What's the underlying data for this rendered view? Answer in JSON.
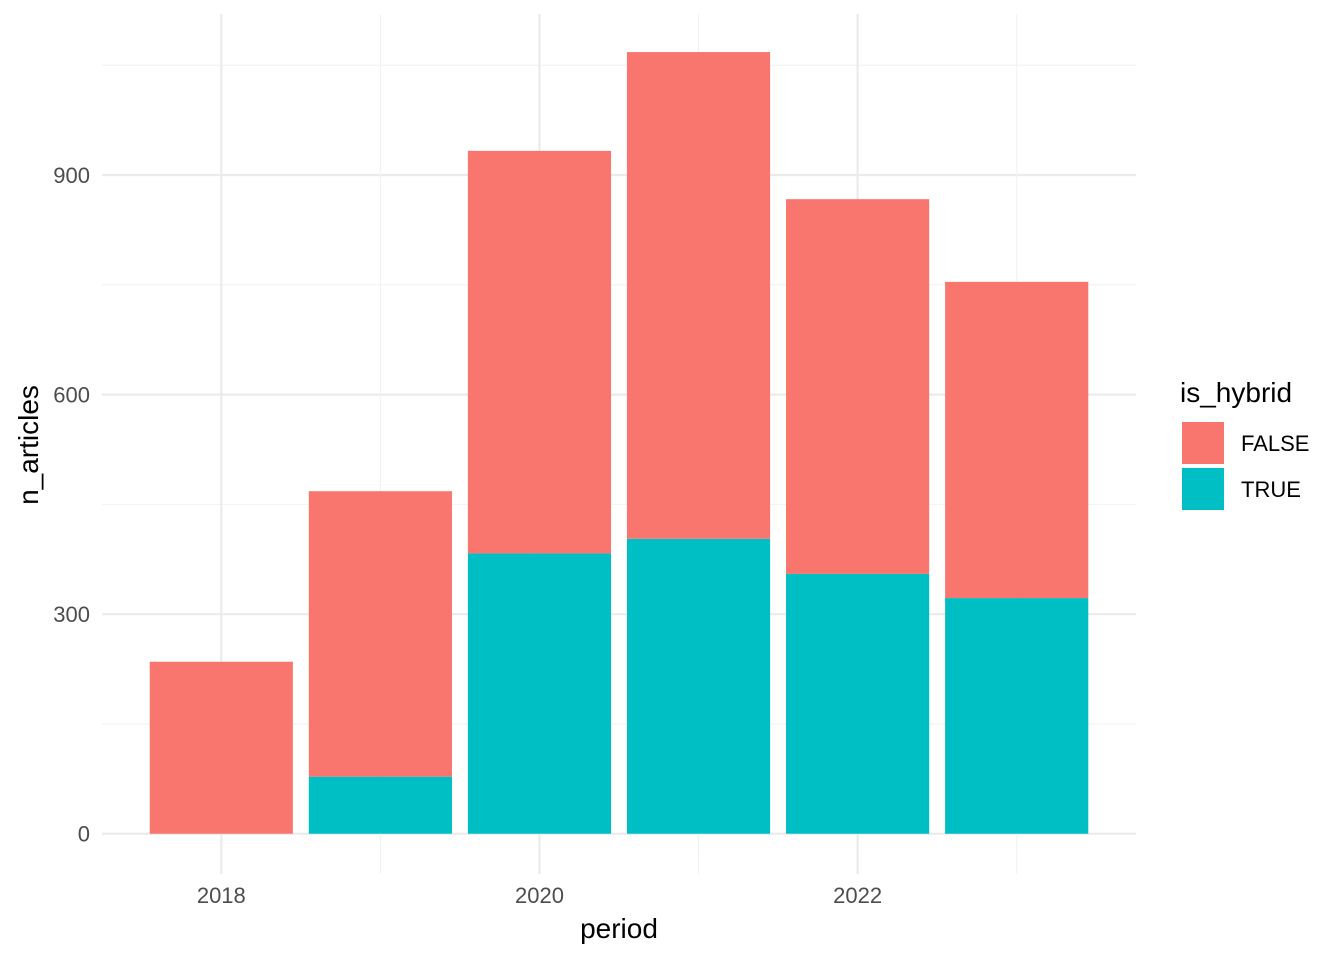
{
  "chart_data": {
    "type": "bar",
    "stacked": true,
    "x": [
      2018,
      2019,
      2020,
      2021,
      2022,
      2023
    ],
    "x_tick_labels": [
      "2018",
      "2020",
      "2022"
    ],
    "x_tick_values": [
      2018,
      2020,
      2022
    ],
    "y_tick_labels": [
      "0",
      "300",
      "600",
      "900"
    ],
    "y_tick_values": [
      0,
      300,
      600,
      900
    ],
    "xlim": [
      2017.25,
      2023.75
    ],
    "ylim": [
      -55,
      1120
    ],
    "xlabel": "period",
    "ylabel": "n_articles",
    "legend": {
      "title": "is_hybrid",
      "placement": "right"
    },
    "series": [
      {
        "name": "FALSE",
        "color": "#F8766D",
        "values": [
          235,
          390,
          550,
          665,
          512,
          432
        ]
      },
      {
        "name": "TRUE",
        "color": "#00BFC4",
        "values": [
          0,
          78,
          383,
          403,
          355,
          322
        ]
      }
    ],
    "grid": true
  }
}
